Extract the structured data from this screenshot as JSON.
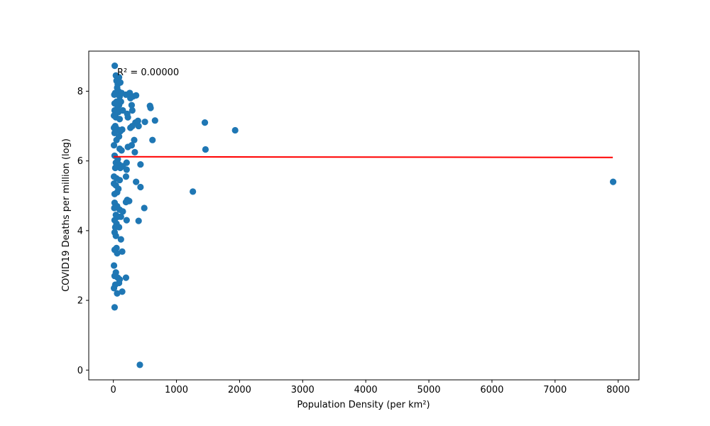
{
  "chart_data": {
    "type": "scatter",
    "title": "",
    "xlabel": "Population Density (per km²)",
    "ylabel": "COVID19 Deaths per million (log)",
    "xlim": [
      -390,
      8330
    ],
    "ylim": [
      -0.28,
      9.15
    ],
    "xticks": [
      0,
      1000,
      2000,
      3000,
      4000,
      5000,
      6000,
      7000,
      8000
    ],
    "yticks": [
      0,
      2,
      4,
      6,
      8
    ],
    "grid": false,
    "legend": "none",
    "annotation": "R² = 0.00000",
    "colors": {
      "points": "#1f77b4",
      "fit_line": "#ff0000"
    },
    "fit_line": {
      "x": [
        2,
        7915
      ],
      "y": [
        6.12,
        6.1
      ]
    },
    "points": [
      [
        22,
        8.73
      ],
      [
        40,
        8.45
      ],
      [
        50,
        8.3
      ],
      [
        70,
        8.2
      ],
      [
        90,
        8.4
      ],
      [
        110,
        8.25
      ],
      [
        60,
        8.1
      ],
      [
        80,
        8.0
      ],
      [
        30,
        7.95
      ],
      [
        15,
        7.9
      ],
      [
        100,
        7.85
      ],
      [
        130,
        7.95
      ],
      [
        200,
        7.9
      ],
      [
        260,
        7.95
      ],
      [
        310,
        7.85
      ],
      [
        360,
        7.88
      ],
      [
        270,
        7.8
      ],
      [
        20,
        7.65
      ],
      [
        50,
        7.7
      ],
      [
        90,
        7.6
      ],
      [
        120,
        7.7
      ],
      [
        290,
        7.6
      ],
      [
        580,
        7.58
      ],
      [
        590,
        7.52
      ],
      [
        20,
        7.45
      ],
      [
        60,
        7.5
      ],
      [
        80,
        7.4
      ],
      [
        150,
        7.45
      ],
      [
        220,
        7.35
      ],
      [
        300,
        7.45
      ],
      [
        10,
        7.3
      ],
      [
        40,
        7.25
      ],
      [
        100,
        7.2
      ],
      [
        230,
        7.25
      ],
      [
        350,
        7.1
      ],
      [
        390,
        7.15
      ],
      [
        500,
        7.12
      ],
      [
        660,
        7.16
      ],
      [
        1450,
        7.1
      ],
      [
        1930,
        6.88
      ],
      [
        30,
        7.0
      ],
      [
        10,
        6.95
      ],
      [
        70,
        6.9
      ],
      [
        110,
        6.85
      ],
      [
        140,
        6.9
      ],
      [
        270,
        6.95
      ],
      [
        300,
        7.0
      ],
      [
        400,
        7.0
      ],
      [
        20,
        6.8
      ],
      [
        90,
        6.7
      ],
      [
        50,
        6.6
      ],
      [
        330,
        6.6
      ],
      [
        620,
        6.6
      ],
      [
        10,
        6.45
      ],
      [
        100,
        6.35
      ],
      [
        130,
        6.3
      ],
      [
        230,
        6.4
      ],
      [
        290,
        6.45
      ],
      [
        340,
        6.25
      ],
      [
        1460,
        6.33
      ],
      [
        20,
        6.15
      ],
      [
        70,
        6.05
      ],
      [
        40,
        5.95
      ],
      [
        90,
        5.9
      ],
      [
        210,
        5.95
      ],
      [
        430,
        5.9
      ],
      [
        30,
        5.8
      ],
      [
        110,
        5.8
      ],
      [
        210,
        5.75
      ],
      [
        150,
        5.85
      ],
      [
        10,
        5.55
      ],
      [
        50,
        5.5
      ],
      [
        100,
        5.45
      ],
      [
        200,
        5.55
      ],
      [
        360,
        5.4
      ],
      [
        10,
        5.35
      ],
      [
        40,
        5.3
      ],
      [
        80,
        5.2
      ],
      [
        430,
        5.25
      ],
      [
        1260,
        5.12
      ],
      [
        7920,
        5.4
      ],
      [
        20,
        5.05
      ],
      [
        60,
        5.1
      ],
      [
        220,
        4.88
      ],
      [
        250,
        4.85
      ],
      [
        200,
        4.82
      ],
      [
        20,
        4.8
      ],
      [
        60,
        4.7
      ],
      [
        100,
        4.6
      ],
      [
        150,
        4.55
      ],
      [
        490,
        4.65
      ],
      [
        15,
        4.65
      ],
      [
        40,
        4.45
      ],
      [
        80,
        4.4
      ],
      [
        120,
        4.4
      ],
      [
        210,
        4.3
      ],
      [
        400,
        4.28
      ],
      [
        20,
        4.3
      ],
      [
        50,
        4.2
      ],
      [
        30,
        4.1
      ],
      [
        90,
        4.1
      ],
      [
        20,
        3.95
      ],
      [
        40,
        3.85
      ],
      [
        120,
        3.75
      ],
      [
        20,
        3.45
      ],
      [
        50,
        3.5
      ],
      [
        60,
        3.35
      ],
      [
        140,
        3.4
      ],
      [
        10,
        3.0
      ],
      [
        40,
        2.8
      ],
      [
        20,
        2.7
      ],
      [
        70,
        2.65
      ],
      [
        100,
        2.6
      ],
      [
        200,
        2.65
      ],
      [
        90,
        2.5
      ],
      [
        30,
        2.45
      ],
      [
        10,
        2.35
      ],
      [
        140,
        2.25
      ],
      [
        60,
        2.2
      ],
      [
        20,
        1.8
      ],
      [
        420,
        0.15
      ]
    ]
  }
}
